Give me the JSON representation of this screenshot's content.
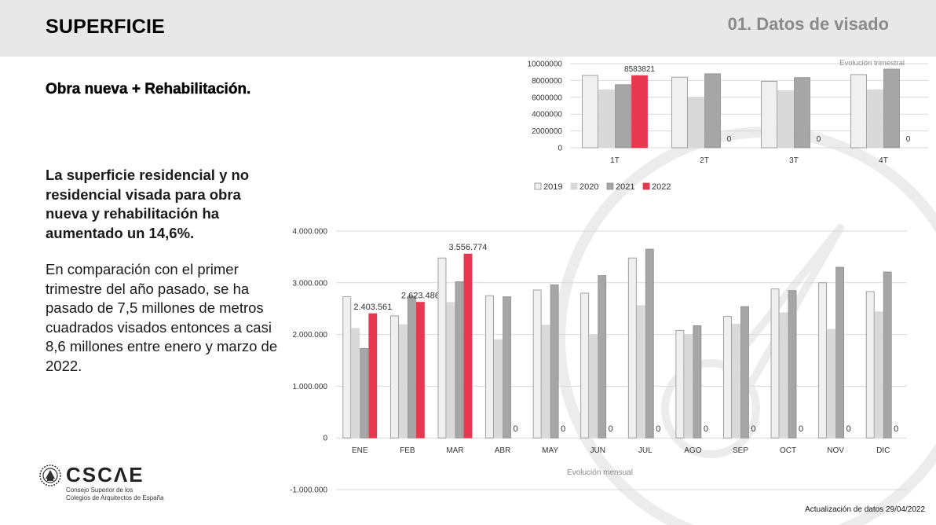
{
  "header": {
    "title": "SUPERFICIE",
    "section": "01. Datos de visado"
  },
  "subtitle": "Obra nueva + Rehabilitación.",
  "highlight": "La superficie residencial y no residencial visada para obra nueva y rehabilitación ha aumentado un 14,6%.",
  "body": "En comparación con el primer trimestre del año pasado, se ha pasado de 7,5 millones de metros cuadrados visados entonces a casi 8,6 millones entre enero y marzo de 2022.",
  "logo": {
    "name": "CSCΛE",
    "line1": "Consejo Superior de los",
    "line2": "Colegios de Arquitectos de España"
  },
  "footer": "Actualización de datos 29/04/2022",
  "colors": {
    "2019": "#f0f0f0",
    "2020": "#d9d9d9",
    "2021": "#a6a6a6",
    "2022": "#e8384f"
  },
  "chart_data": [
    {
      "type": "bar",
      "title": "Evolución trimestral",
      "categories": [
        "1T",
        "2T",
        "3T",
        "4T"
      ],
      "series": [
        {
          "name": "2019",
          "values": [
            8600000,
            8400000,
            7900000,
            8700000
          ]
        },
        {
          "name": "2020",
          "values": [
            6900000,
            6000000,
            6800000,
            6900000
          ]
        },
        {
          "name": "2021",
          "values": [
            7500000,
            8800000,
            8350000,
            9350000
          ]
        },
        {
          "name": "2022",
          "values": [
            8583821,
            0,
            0,
            0
          ]
        }
      ],
      "ylim": [
        0,
        10000000
      ],
      "yticks": [
        "0",
        "2000000",
        "4000000",
        "6000000",
        "8000000",
        "10000000"
      ],
      "data_labels": {
        "2022": [
          "8583821",
          "0",
          "0",
          "0"
        ]
      },
      "legend": "bottom",
      "grid": true
    },
    {
      "type": "bar",
      "title": "Evolución mensual",
      "categories": [
        "ENE",
        "FEB",
        "MAR",
        "ABR",
        "MAY",
        "JUN",
        "JUL",
        "AGO",
        "SEP",
        "OCT",
        "NOV",
        "DIC"
      ],
      "series": [
        {
          "name": "2019",
          "values": [
            2730000,
            2360000,
            3480000,
            2750000,
            2860000,
            2800000,
            3480000,
            2080000,
            2350000,
            2880000,
            3000000,
            2830000
          ]
        },
        {
          "name": "2020",
          "values": [
            2120000,
            2190000,
            2620000,
            1900000,
            2180000,
            2000000,
            2560000,
            2000000,
            2200000,
            2420000,
            2100000,
            2440000
          ]
        },
        {
          "name": "2021",
          "values": [
            1730000,
            2740000,
            3020000,
            2730000,
            2960000,
            3140000,
            3650000,
            2170000,
            2540000,
            2850000,
            3300000,
            3210000
          ]
        },
        {
          "name": "2022",
          "values": [
            2403561,
            2623486,
            3556774,
            0,
            0,
            0,
            0,
            0,
            0,
            0,
            0,
            0
          ]
        }
      ],
      "ylim": [
        -1000000,
        4000000
      ],
      "yticks": [
        "-1.000.000",
        "0",
        "1.000.000",
        "2.000.000",
        "3.000.000",
        "4.000.000"
      ],
      "data_labels": {
        "2022": [
          "2.403.561",
          "2.623.486",
          "3.556.774",
          "0",
          "0",
          "0",
          "0",
          "0",
          "0",
          "0",
          "0",
          "0"
        ]
      },
      "legend": "none",
      "grid": true
    }
  ]
}
